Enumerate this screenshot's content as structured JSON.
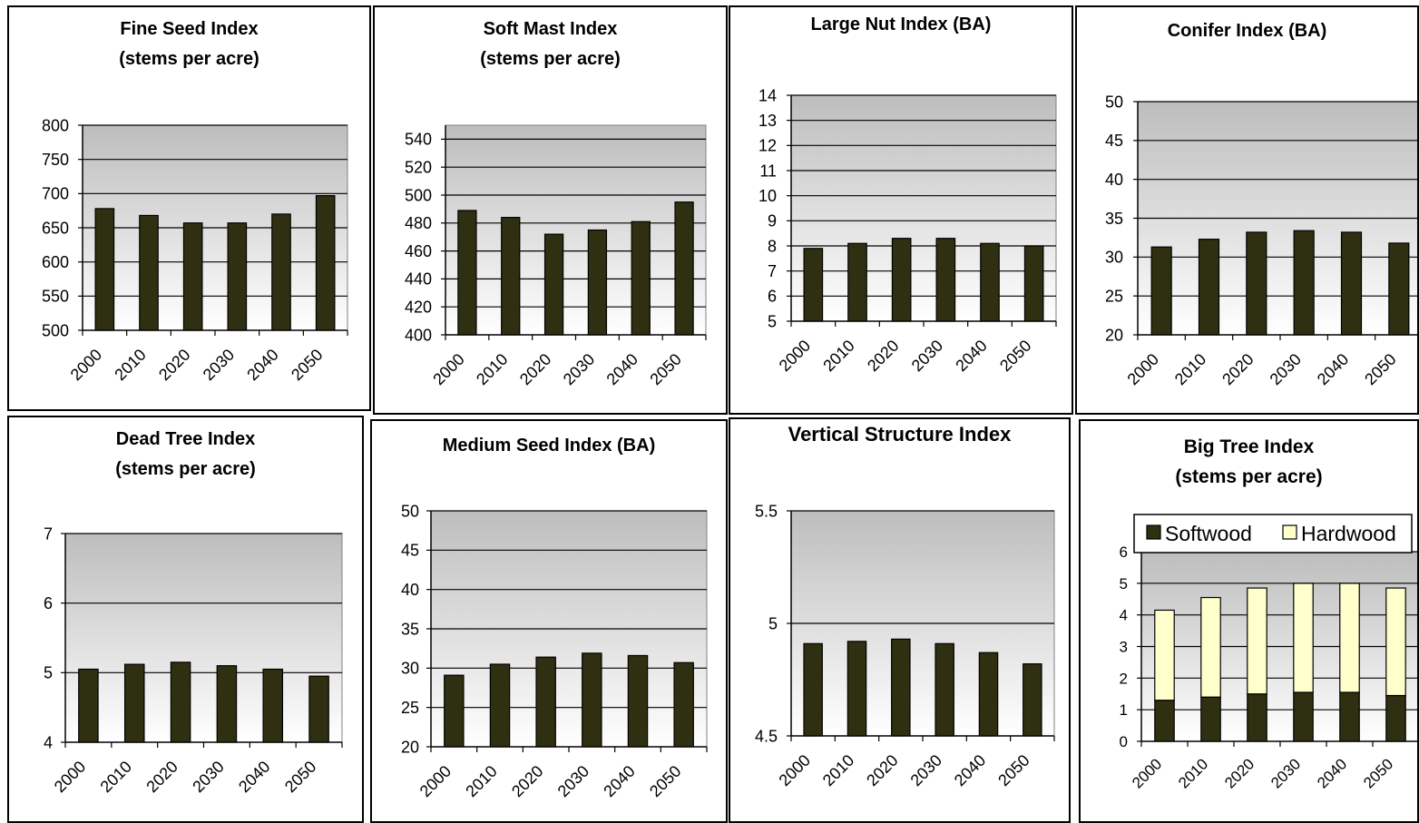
{
  "colors": {
    "bar_dark": "#2f2f12",
    "hardwood": "#ffffcc",
    "plot_top": "#bdbdbd",
    "plot_bottom": "#ffffff"
  },
  "chart_data": [
    {
      "type": "bar",
      "title": [
        "Fine Seed Index",
        "(stems per acre)"
      ],
      "categories": [
        "2000",
        "2010",
        "2020",
        "2030",
        "2040",
        "2050"
      ],
      "values": [
        678,
        668,
        657,
        657,
        670,
        697
      ],
      "ylim": [
        500,
        800
      ],
      "yticks": [
        500,
        550,
        600,
        650,
        700,
        750,
        800
      ],
      "grid": true,
      "legend": "none"
    },
    {
      "type": "bar",
      "title": [
        "Soft Mast Index",
        "(stems per acre)"
      ],
      "categories": [
        "2000",
        "2010",
        "2020",
        "2030",
        "2040",
        "2050"
      ],
      "values": [
        489,
        484,
        472,
        475,
        481,
        495
      ],
      "ylim": [
        400,
        550
      ],
      "yticks": [
        400,
        420,
        440,
        460,
        480,
        500,
        520,
        540
      ],
      "grid": true,
      "legend": "none"
    },
    {
      "type": "bar",
      "title": [
        "Large Nut Index (BA)"
      ],
      "categories": [
        "2000",
        "2010",
        "2020",
        "2030",
        "2040",
        "2050"
      ],
      "values": [
        7.9,
        8.1,
        8.3,
        8.3,
        8.1,
        8.0
      ],
      "ylim": [
        5,
        14
      ],
      "yticks": [
        5,
        6,
        7,
        8,
        9,
        10,
        11,
        12,
        13,
        14
      ],
      "grid": true,
      "legend": "none"
    },
    {
      "type": "bar",
      "title": [
        "Conifer Index (BA)"
      ],
      "categories": [
        "2000",
        "2010",
        "2020",
        "2030",
        "2040",
        "2050"
      ],
      "values": [
        31.3,
        32.3,
        33.2,
        33.4,
        33.2,
        31.8
      ],
      "ylim": [
        20,
        50
      ],
      "yticks": [
        20,
        25,
        30,
        35,
        40,
        45,
        50
      ],
      "grid": true,
      "legend": "none"
    },
    {
      "type": "bar",
      "title": [
        "Dead Tree Index",
        "(stems per acre)"
      ],
      "categories": [
        "2000",
        "2010",
        "2020",
        "2030",
        "2040",
        "2050"
      ],
      "values": [
        5.05,
        5.12,
        5.15,
        5.1,
        5.05,
        4.95
      ],
      "ylim": [
        4,
        7
      ],
      "yticks": [
        4,
        5,
        6,
        7
      ],
      "grid": true,
      "legend": "none"
    },
    {
      "type": "bar",
      "title": [
        "Medium Seed Index (BA)"
      ],
      "categories": [
        "2000",
        "2010",
        "2020",
        "2030",
        "2040",
        "2050"
      ],
      "values": [
        29.1,
        30.5,
        31.4,
        31.9,
        31.6,
        30.7
      ],
      "ylim": [
        20,
        50
      ],
      "yticks": [
        20,
        25,
        30,
        35,
        40,
        45,
        50
      ],
      "grid": true,
      "legend": "none"
    },
    {
      "type": "bar",
      "title": [
        "Vertical Structure Index"
      ],
      "categories": [
        "2000",
        "2010",
        "2020",
        "2030",
        "2040",
        "2050"
      ],
      "values": [
        4.91,
        4.92,
        4.93,
        4.91,
        4.87,
        4.82
      ],
      "ylim": [
        4.5,
        5.5
      ],
      "yticks": [
        4.5,
        5,
        5.5
      ],
      "grid": true,
      "legend": "none"
    },
    {
      "type": "bar",
      "stacked": true,
      "title": [
        "Big Tree Index",
        "(stems per acre)"
      ],
      "categories": [
        "2000",
        "2010",
        "2020",
        "2030",
        "2040",
        "2050"
      ],
      "series": [
        {
          "name": "Softwood",
          "values": [
            1.3,
            1.4,
            1.5,
            1.55,
            1.55,
            1.45
          ]
        },
        {
          "name": "Hardwood",
          "values": [
            2.85,
            3.15,
            3.35,
            3.45,
            3.45,
            3.4
          ]
        }
      ],
      "ylim": [
        0,
        6
      ],
      "yticks": [
        0,
        1,
        2,
        3,
        4,
        5,
        6
      ],
      "grid": true,
      "legend": "top"
    }
  ]
}
